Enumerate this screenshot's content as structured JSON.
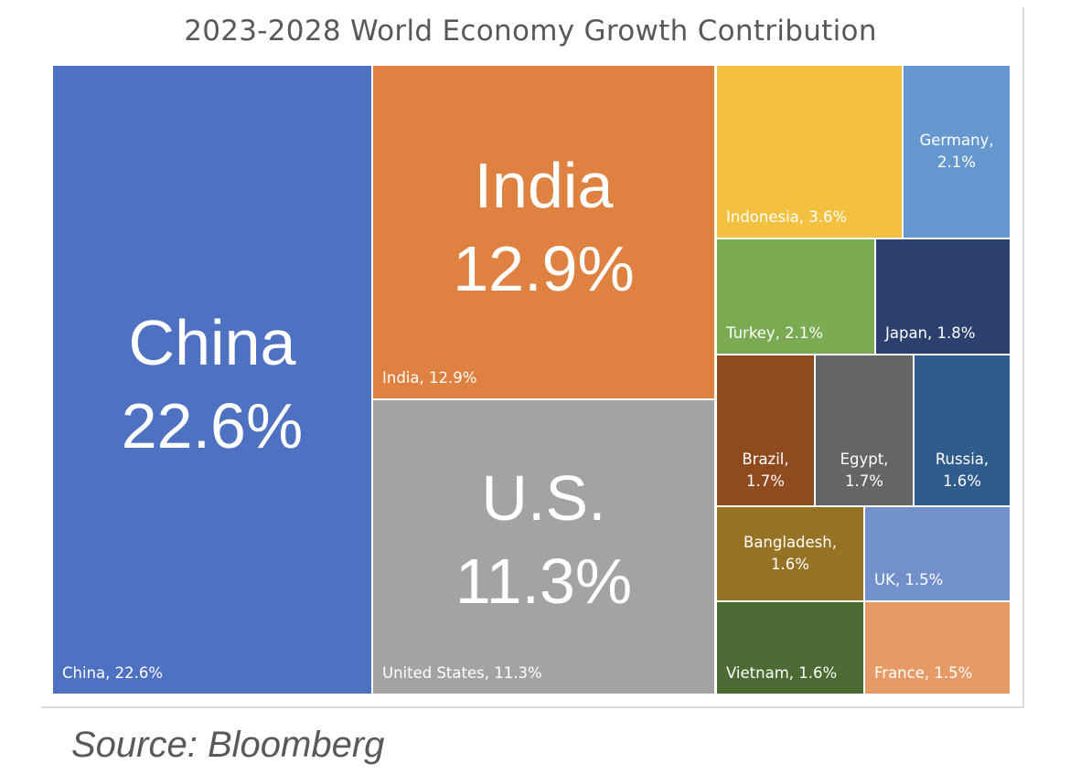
{
  "chart_data": {
    "type": "treemap",
    "title": "2023-2028 World Economy Growth Contribution",
    "unit": "%",
    "items": [
      {
        "name": "China",
        "label": "China, 22.6%",
        "value": 22.6,
        "color": "#4f71c1",
        "big": [
          "China",
          "22.6%"
        ]
      },
      {
        "name": "India",
        "label": "India, 12.9%",
        "value": 12.9,
        "color": "#df8140",
        "big": [
          "India",
          "12.9%"
        ]
      },
      {
        "name": "U.S.",
        "label": "United States, 11.3%",
        "value": 11.3,
        "color": "#a3a3a3",
        "big": [
          "U.S.",
          "11.3%"
        ]
      },
      {
        "name": "Indonesia",
        "label": "Indonesia, 3.6%",
        "value": 3.6,
        "color": "#f3c13f"
      },
      {
        "name": "Germany",
        "label": "Germany, 2.1%",
        "value": 2.1,
        "color": "#6698d0"
      },
      {
        "name": "Turkey",
        "label": "Turkey, 2.1%",
        "value": 2.1,
        "color": "#7aaa52"
      },
      {
        "name": "Japan",
        "label": "Japan, 1.8%",
        "value": 1.8,
        "color": "#2c4070"
      },
      {
        "name": "Brazil",
        "label": "Brazil, 1.7%",
        "value": 1.7,
        "color": "#8f4a1e"
      },
      {
        "name": "Egypt",
        "label": "Egypt, 1.7%",
        "value": 1.7,
        "color": "#656565"
      },
      {
        "name": "Russia",
        "label": "Russia, 1.6%",
        "value": 1.6,
        "color": "#2f5c8c"
      },
      {
        "name": "Bangladesh",
        "label": "Bangladesh, 1.6%",
        "value": 1.6,
        "color": "#967324"
      },
      {
        "name": "UK",
        "label": "UK, 1.5%",
        "value": 1.5,
        "color": "#7290cc"
      },
      {
        "name": "Vietnam",
        "label": "Vietnam, 1.6%",
        "value": 1.6,
        "color": "#4b6b33"
      },
      {
        "name": "France",
        "label": "France, 1.5%",
        "value": 1.5,
        "color": "#e69a66"
      }
    ]
  },
  "source": "Source: Bloomberg"
}
